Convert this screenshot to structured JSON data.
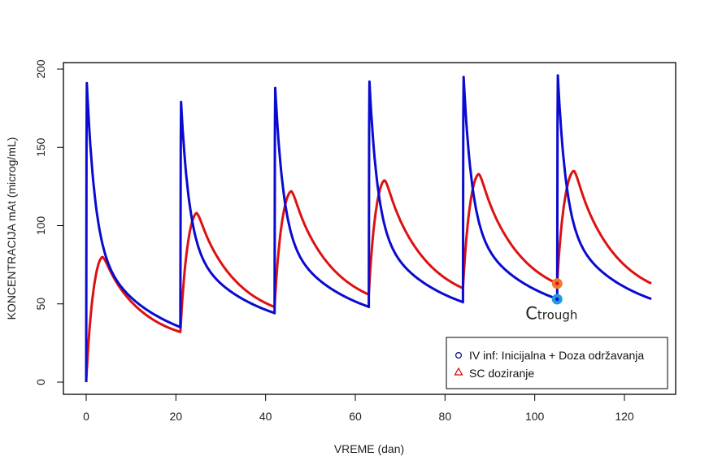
{
  "chart_data": {
    "type": "line",
    "title": "",
    "xlabel": "VREME (dan)",
    "ylabel": "KONCENTRACIJA mAt (microg/mL)",
    "xlim": [
      -5,
      132
    ],
    "ylim": [
      -8,
      204
    ],
    "x_ticks": [
      0,
      20,
      40,
      60,
      80,
      100,
      120
    ],
    "y_ticks": [
      0,
      50,
      100,
      150,
      200
    ],
    "grid": false,
    "legend": {
      "position": "bottom-right",
      "entries": [
        {
          "label": "IV inf: Inicijalna + Doza održavanja",
          "marker": "circle",
          "color": "#00008b"
        },
        {
          "label": "SC doziranje",
          "marker": "triangle",
          "color": "#cc0000"
        }
      ]
    },
    "dosing_interval_days": 21,
    "series": [
      {
        "name": "IV inf: Inicijalna + Doza održavanja",
        "color": "#0a0ad0",
        "cycles": [
          {
            "start_day": 0,
            "start": 0,
            "peak": 191,
            "end": 35
          },
          {
            "start_day": 21,
            "start": 35,
            "peak": 179,
            "end": 44
          },
          {
            "start_day": 42,
            "start": 44,
            "peak": 188,
            "end": 48
          },
          {
            "start_day": 63,
            "start": 48,
            "peak": 192,
            "end": 51
          },
          {
            "start_day": 84,
            "start": 51,
            "peak": 195,
            "end": 53
          },
          {
            "start_day": 105,
            "start": 53,
            "peak": 196,
            "end": 53
          }
        ]
      },
      {
        "name": "SC doziranje",
        "color": "#dd1111",
        "cycles": [
          {
            "start_day": 0,
            "start": 0,
            "peak_day": 3.6,
            "peak": 80,
            "end": 32
          },
          {
            "start_day": 21,
            "start": 32,
            "peak_day": 24.6,
            "peak": 108,
            "end": 48
          },
          {
            "start_day": 42,
            "start": 48,
            "peak_day": 45.7,
            "peak": 122,
            "end": 56
          },
          {
            "start_day": 63,
            "start": 56,
            "peak_day": 66.5,
            "peak": 129,
            "end": 60
          },
          {
            "start_day": 84,
            "start": 60,
            "peak_day": 87.5,
            "peak": 133,
            "end": 63
          },
          {
            "start_day": 105,
            "start": 63,
            "peak_day": 108.7,
            "peak": 135,
            "end": 63
          }
        ]
      }
    ],
    "annotations": [
      {
        "text_main": "C",
        "text_sub": "trough",
        "x": 105,
        "y": 45
      },
      {
        "marker": "ctrough-sc",
        "x": 105,
        "y": 63,
        "color": "#f07a2a",
        "dot_color": "#dd1111"
      },
      {
        "marker": "ctrough-iv",
        "x": 105,
        "y": 53,
        "color": "#1e9be2",
        "dot_color": "#0a0ad0"
      }
    ]
  }
}
